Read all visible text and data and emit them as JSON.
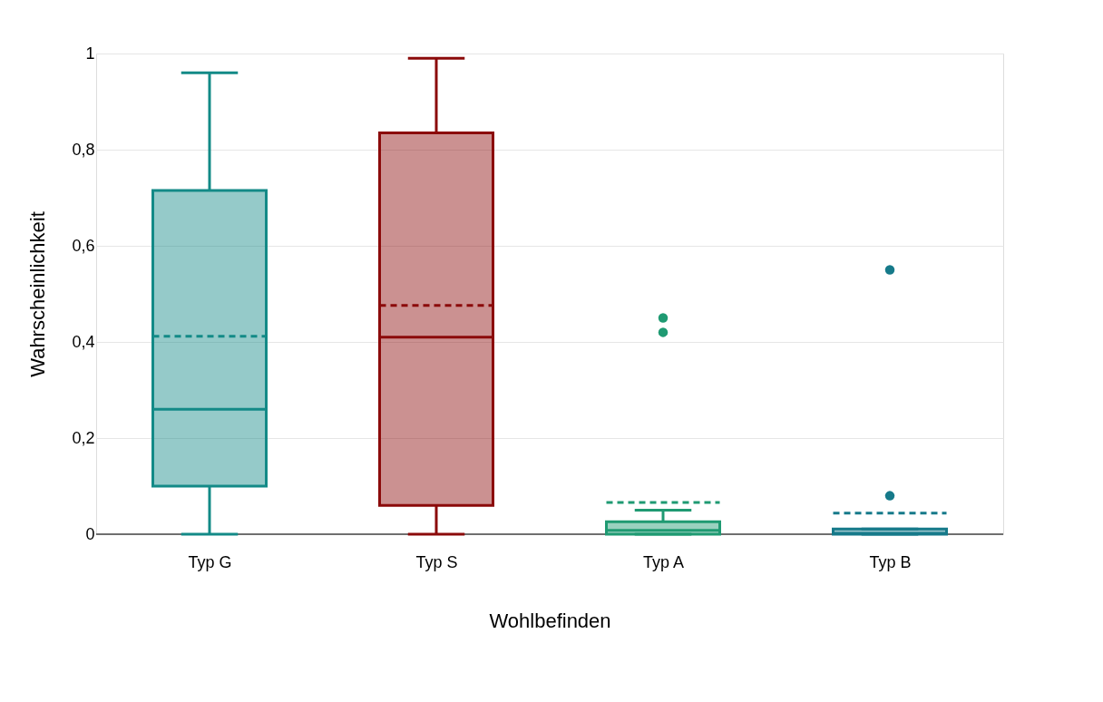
{
  "chart_data": {
    "type": "box",
    "xlabel": "Wohlbefinden",
    "ylabel": "Wahrscheinlichkeit",
    "categories": [
      "Typ G",
      "Typ S",
      "Typ A",
      "Typ B"
    ],
    "colors": [
      "#138a87",
      "#8b0a0a",
      "#1f9a72",
      "#167a8a"
    ],
    "boxes": [
      {
        "low": 0,
        "q1": 0.1,
        "median": 0.26,
        "q3": 0.715,
        "high": 0.96,
        "mean": 0.412
      },
      {
        "low": 0,
        "q1": 0.06,
        "median": 0.41,
        "q3": 0.835,
        "high": 0.99,
        "mean": 0.476
      },
      {
        "low": 0,
        "q1": 0,
        "median": 0.008,
        "q3": 0.026,
        "high": 0.05,
        "mean": 0.066,
        "outliers": [
          0.45,
          0.42
        ]
      },
      {
        "low": 0,
        "q1": 0,
        "median": 0.002,
        "q3": 0.011,
        "high": 0.011,
        "mean": 0.044,
        "outliers": [
          0.55,
          0.08
        ]
      }
    ],
    "ylim": [
      0,
      1
    ],
    "yticks": [
      0,
      {
        "value": 0.2,
        "label": "0,2"
      },
      {
        "value": 0.4,
        "label": "0,4"
      },
      {
        "value": 0.6,
        "label": "0,6"
      },
      {
        "value": 0.8,
        "label": "0,8"
      },
      1
    ],
    "grid": "y",
    "legend": false
  }
}
